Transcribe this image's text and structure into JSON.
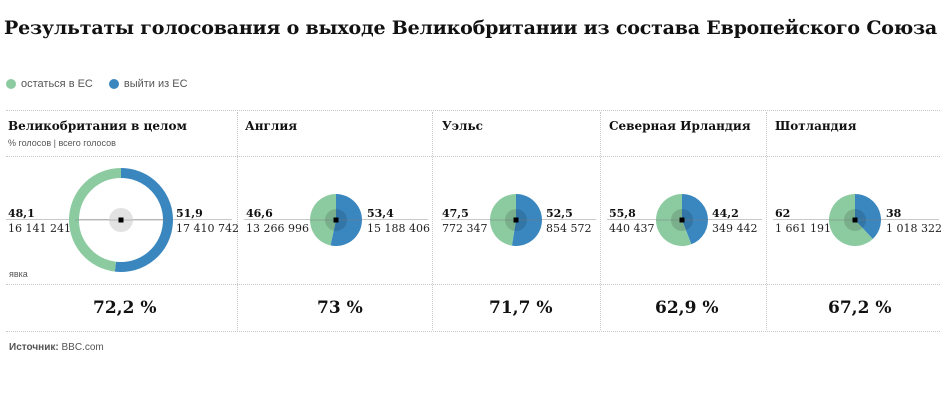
{
  "title": "Результаты голосования о выходе Великобритании из состава Европейского Союза",
  "legend": {
    "remain": {
      "label": "остаться в ЕС",
      "color": "#8ccba0"
    },
    "leave": {
      "label": "выйти из ЕС",
      "color": "#3a87c0"
    }
  },
  "subtitle": "% голосов | всего голосов",
  "turnout_label": "явка",
  "source": {
    "label": "Источник:",
    "value": "BBC.com"
  },
  "chart_data": [
    {
      "type": "pie",
      "title": "Великобритания в целом",
      "categories": [
        "остаться в ЕС",
        "выйти из ЕС"
      ],
      "values": [
        48.1,
        51.9
      ],
      "remain_pct": "48,1",
      "remain_votes": "16 141 241",
      "leave_pct": "51,9",
      "leave_votes": "17 410 742",
      "turnout": "72,2 %"
    },
    {
      "type": "pie",
      "title": "Англия",
      "categories": [
        "остаться в ЕС",
        "выйти из ЕС"
      ],
      "values": [
        46.6,
        53.4
      ],
      "remain_pct": "46,6",
      "remain_votes": "13 266 996",
      "leave_pct": "53,4",
      "leave_votes": "15 188 406",
      "turnout": "73 %"
    },
    {
      "type": "pie",
      "title": "Уэльс",
      "categories": [
        "остаться в ЕС",
        "выйти из ЕС"
      ],
      "values": [
        47.5,
        52.5
      ],
      "remain_pct": "47,5",
      "remain_votes": "772 347",
      "leave_pct": "52,5",
      "leave_votes": "854 572",
      "turnout": "71,7 %"
    },
    {
      "type": "pie",
      "title": "Северная Ирландия",
      "categories": [
        "остаться в ЕС",
        "выйти из ЕС"
      ],
      "values": [
        55.8,
        44.2
      ],
      "remain_pct": "55,8",
      "remain_votes": "440 437",
      "leave_pct": "44,2",
      "leave_votes": "349 442",
      "turnout": "62,9 %"
    },
    {
      "type": "pie",
      "title": "Шотландия",
      "categories": [
        "остаться в ЕС",
        "выйти из ЕС"
      ],
      "values": [
        62,
        38
      ],
      "remain_pct": "62",
      "remain_votes": "1 661 191",
      "leave_pct": "38",
      "leave_votes": "1 018 322",
      "turnout": "67,2 %"
    }
  ]
}
